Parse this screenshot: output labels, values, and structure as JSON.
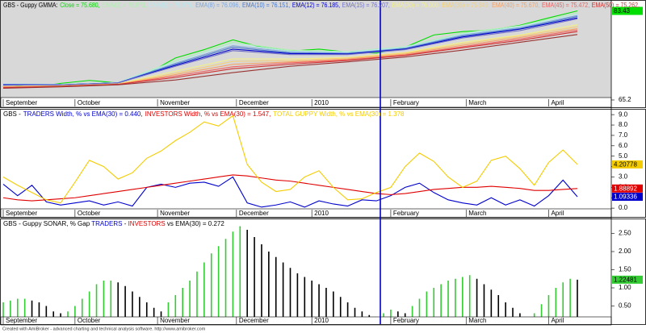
{
  "chart_data": [
    {
      "type": "line",
      "title": "GBS - Guppy GMMA:",
      "xlim": [
        0,
        169
      ],
      "xticks": [
        {
          "value": 0,
          "label": "September"
        },
        {
          "value": 20,
          "label": "October"
        },
        {
          "value": 43,
          "label": "November"
        },
        {
          "value": 65,
          "label": "December"
        },
        {
          "value": 86,
          "label": "2010"
        },
        {
          "value": 108,
          "label": "February"
        },
        {
          "value": 129,
          "label": "March"
        },
        {
          "value": 152,
          "label": "April"
        }
      ],
      "ylim": [
        65.2,
        85.0
      ],
      "yticks": [
        65.2
      ],
      "series": [
        {
          "label": "Close = 75.680,",
          "color": "#00dd00",
          "last_value_box": true,
          "x": [
            0,
            8,
            16,
            24,
            32,
            40,
            48,
            56,
            64,
            72,
            80,
            88,
            96,
            104,
            112,
            120,
            128,
            136,
            144,
            152,
            160
          ],
          "values": [
            68.5,
            67.8,
            68.6,
            69.2,
            68.7,
            70.5,
            73.8,
            75.5,
            77.5,
            76.0,
            75.2,
            75.6,
            75.0,
            74.8,
            76.0,
            78.5,
            79.2,
            79.5,
            80.5,
            82.0,
            83.43
          ]
        },
        {
          "label": "EMA(3) = 75.873,",
          "color": "#b0f0b0",
          "x": [
            0,
            16,
            32,
            48,
            64,
            80,
            96,
            112,
            128,
            144,
            160
          ],
          "values": [
            68.5,
            68.4,
            68.8,
            73.2,
            77.0,
            75.4,
            75.1,
            76.1,
            78.9,
            80.4,
            83.0
          ]
        },
        {
          "label": "EMA(5) = 75.975,",
          "color": "#b8e8f0",
          "x": [
            0,
            16,
            32,
            48,
            64,
            80,
            96,
            112,
            128,
            144,
            160
          ],
          "values": [
            68.5,
            68.4,
            68.8,
            73.0,
            76.7,
            75.2,
            75.0,
            76.0,
            78.7,
            80.2,
            82.8
          ]
        },
        {
          "label": "EMA(8) = 76.096,",
          "color": "#7fa6d8",
          "x": [
            0,
            16,
            32,
            48,
            64,
            80,
            96,
            112,
            128,
            144,
            160
          ],
          "values": [
            68.4,
            68.3,
            68.7,
            72.7,
            76.3,
            75.0,
            74.8,
            75.8,
            78.5,
            80.0,
            82.5
          ]
        },
        {
          "label": "EMA(10) = 76.151,",
          "color": "#4a78cc",
          "x": [
            0,
            16,
            32,
            48,
            64,
            80,
            96,
            112,
            128,
            144,
            160
          ],
          "values": [
            68.3,
            68.3,
            68.7,
            72.5,
            76.0,
            74.8,
            74.7,
            75.7,
            78.3,
            79.8,
            82.3
          ]
        },
        {
          "label": "EMA(12) = 76.185,",
          "color": "#0000cc",
          "x": [
            0,
            16,
            32,
            48,
            64,
            80,
            96,
            112,
            128,
            144,
            160
          ],
          "values": [
            68.3,
            68.3,
            68.7,
            72.3,
            75.6,
            74.7,
            74.6,
            75.6,
            78.1,
            79.7,
            82.0
          ]
        },
        {
          "label": "EMA(15) = 76.207,",
          "color": "#7070c8",
          "x": [
            0,
            16,
            32,
            48,
            64,
            80,
            96,
            112,
            128,
            144,
            160
          ],
          "values": [
            68.2,
            68.3,
            68.7,
            72.1,
            75.3,
            74.5,
            74.5,
            75.5,
            77.9,
            79.4,
            81.8
          ]
        },
        {
          "label": "EMA(30) = 76.000,",
          "color": "#f4f088",
          "x": [
            0,
            16,
            32,
            48,
            64,
            80,
            96,
            112,
            128,
            144,
            160
          ],
          "values": [
            68.0,
            68.1,
            68.5,
            71.1,
            73.6,
            73.6,
            73.9,
            74.9,
            77.0,
            78.5,
            80.6
          ]
        },
        {
          "label": "EMA(35) = 75.849,",
          "color": "#f8d070",
          "x": [
            0,
            16,
            32,
            48,
            64,
            80,
            96,
            112,
            128,
            144,
            160
          ],
          "values": [
            67.9,
            68.1,
            68.5,
            70.7,
            73.1,
            73.3,
            73.8,
            74.8,
            76.7,
            78.3,
            80.2
          ]
        },
        {
          "label": "EMA(40) = 75.670,",
          "color": "#f8a060",
          "x": [
            0,
            16,
            32,
            48,
            64,
            80,
            96,
            112,
            128,
            144,
            160
          ],
          "values": [
            67.9,
            68.0,
            68.4,
            70.4,
            72.5,
            73.0,
            73.6,
            74.6,
            76.4,
            78.0,
            79.8
          ]
        },
        {
          "label": "EMA(45) = 75.472,",
          "color": "#f06060",
          "x": [
            0,
            16,
            32,
            48,
            64,
            80,
            96,
            112,
            128,
            144,
            160
          ],
          "values": [
            67.8,
            68.0,
            68.4,
            70.1,
            72.0,
            72.8,
            73.4,
            74.4,
            76.1,
            77.7,
            79.5
          ]
        },
        {
          "label": "EMA(50) = 75.262,",
          "color": "#d03030",
          "x": [
            0,
            16,
            32,
            48,
            64,
            80,
            96,
            112,
            128,
            144,
            160
          ],
          "values": [
            67.7,
            68.0,
            68.4,
            69.8,
            71.6,
            72.5,
            73.3,
            74.3,
            75.9,
            77.4,
            79.2
          ]
        },
        {
          "color": "#993333",
          "x": [
            0,
            16,
            32,
            48,
            64,
            80,
            96,
            112,
            128,
            144,
            160
          ],
          "values": [
            67.6,
            67.9,
            68.3,
            69.3,
            70.8,
            72.1,
            73.0,
            74.0,
            75.4,
            77.0,
            78.6
          ]
        }
      ]
    },
    {
      "type": "line",
      "title": "GBS -",
      "xlim": [
        0,
        169
      ],
      "xticks": [
        {
          "value": 0,
          "label": "September"
        },
        {
          "value": 20,
          "label": "October"
        },
        {
          "value": 43,
          "label": "November"
        },
        {
          "value": 65,
          "label": "December"
        },
        {
          "value": 86,
          "label": "2010"
        },
        {
          "value": 108,
          "label": "February"
        },
        {
          "value": 129,
          "label": "March"
        },
        {
          "value": 152,
          "label": "April"
        }
      ],
      "ylim": [
        -0.3,
        9.4
      ],
      "yticks": [
        {
          "value": 0,
          "label": "0.0"
        },
        {
          "value": 1,
          "label": "1.0"
        },
        {
          "value": 2,
          "label": "2.0"
        },
        {
          "value": 3,
          "label": "3.0"
        },
        {
          "value": 4,
          "label": "4.0"
        },
        {
          "value": 5,
          "label": "5.0"
        },
        {
          "value": 6,
          "label": "6.0"
        },
        {
          "value": 7,
          "label": "7.0"
        },
        {
          "value": 8,
          "label": "8.0"
        },
        {
          "value": 9,
          "label": "9.0"
        }
      ],
      "x": [
        0,
        4,
        8,
        12,
        16,
        20,
        24,
        28,
        32,
        36,
        40,
        44,
        48,
        52,
        56,
        60,
        64,
        68,
        72,
        76,
        80,
        84,
        88,
        92,
        96,
        100,
        104,
        108,
        112,
        116,
        120,
        124,
        128,
        132,
        136,
        140,
        144,
        148,
        152,
        156,
        160
      ],
      "series": [
        {
          "label": "TRADERS Width, % vs EMA(30) = 0.440,",
          "color": "#0000cc",
          "last_value_box": true,
          "values": [
            2.3,
            1.2,
            2.2,
            0.6,
            0.3,
            0.5,
            0.7,
            0.3,
            0.6,
            0.2,
            2.0,
            2.3,
            2.0,
            2.4,
            2.5,
            2.1,
            3.0,
            0.5,
            0.1,
            0.3,
            0.6,
            0.1,
            0.7,
            0.4,
            0.2,
            0.8,
            0.7,
            1.2,
            2.0,
            2.4,
            1.5,
            0.8,
            0.5,
            0.3,
            1.0,
            0.3,
            0.8,
            0.2,
            1.2,
            2.7,
            1.09336
          ]
        },
        {
          "label": "INVESTORS Width, % vs EMA(30) = 1.547,",
          "color": "#e00000",
          "last_value_box": true,
          "values": [
            1.0,
            0.8,
            0.7,
            0.8,
            0.9,
            1.0,
            1.2,
            1.4,
            1.6,
            1.8,
            2.0,
            2.2,
            2.4,
            2.6,
            2.8,
            3.0,
            3.2,
            3.1,
            2.9,
            2.7,
            2.6,
            2.4,
            2.2,
            2.0,
            1.8,
            1.6,
            1.4,
            1.3,
            1.4,
            1.6,
            1.8,
            1.9,
            2.0,
            2.0,
            2.1,
            2.0,
            1.9,
            1.7,
            1.7,
            1.8,
            1.88892
          ]
        },
        {
          "label": "TOTAL GUPPY Width, % vs EMA(30) = 1.378",
          "color": "#f4cc00",
          "last_value_box": true,
          "values": [
            3.0,
            2.2,
            1.5,
            0.8,
            0.5,
            2.5,
            4.6,
            4.0,
            2.8,
            3.4,
            4.8,
            5.5,
            6.5,
            7.3,
            8.3,
            7.9,
            8.9,
            4.2,
            2.5,
            1.6,
            1.8,
            3.0,
            3.6,
            2.0,
            0.8,
            0.9,
            1.5,
            2.0,
            4.0,
            5.3,
            4.5,
            3.0,
            2.0,
            2.6,
            4.6,
            5.0,
            3.8,
            2.2,
            4.4,
            5.6,
            4.20778
          ]
        }
      ]
    },
    {
      "type": "bar",
      "title_parts": [
        {
          "text": "GBS - Guppy SONAR, % Gap ",
          "color": "#000000"
        },
        {
          "text": "TRADERS",
          "color": "#0000cc"
        },
        {
          "text": " - ",
          "color": "#000000"
        },
        {
          "text": "INVESTORS",
          "color": "#e00000"
        },
        {
          "text": " vs EMA(30) = 0.272",
          "color": "#000000"
        }
      ],
      "xlim": [
        0,
        169
      ],
      "xticks": [
        {
          "value": 0,
          "label": "September"
        },
        {
          "value": 20,
          "label": "October"
        },
        {
          "value": 43,
          "label": "November"
        },
        {
          "value": 65,
          "label": "December"
        },
        {
          "value": 86,
          "label": "2010"
        },
        {
          "value": 108,
          "label": "February"
        },
        {
          "value": 129,
          "label": "March"
        },
        {
          "value": 152,
          "label": "April"
        }
      ],
      "ylim": [
        0,
        2.8
      ],
      "yticks": [
        {
          "value": 0.5,
          "label": "0.50"
        },
        {
          "value": 1,
          "label": "1.00"
        },
        {
          "value": 1.5,
          "label": "1.50"
        },
        {
          "value": 2,
          "label": "2.00"
        },
        {
          "value": 2.5,
          "label": "2.50"
        }
      ],
      "up_color": "#33cc33",
      "down_color": "#000000",
      "last_value_box": true,
      "x": [
        0,
        2,
        4,
        6,
        8,
        10,
        12,
        14,
        16,
        18,
        20,
        22,
        24,
        26,
        28,
        30,
        32,
        34,
        36,
        38,
        40,
        42,
        44,
        46,
        48,
        50,
        52,
        54,
        56,
        58,
        60,
        62,
        64,
        66,
        68,
        70,
        72,
        74,
        76,
        78,
        80,
        82,
        84,
        86,
        88,
        90,
        92,
        94,
        96,
        98,
        100,
        102,
        104,
        106,
        108,
        110,
        112,
        114,
        116,
        118,
        120,
        122,
        124,
        126,
        128,
        130,
        132,
        134,
        136,
        138,
        140,
        142,
        144,
        146,
        148,
        150,
        152,
        154,
        156,
        158,
        160
      ],
      "values": [
        0.6,
        0.65,
        0.7,
        0.7,
        0.65,
        0.6,
        0.5,
        0.35,
        0.3,
        0.35,
        0.5,
        0.7,
        0.9,
        1.1,
        1.2,
        1.2,
        1.15,
        1.05,
        0.9,
        0.75,
        0.6,
        0.45,
        0.35,
        0.6,
        0.8,
        1.0,
        1.2,
        1.45,
        1.7,
        1.95,
        2.15,
        2.35,
        2.55,
        2.7,
        2.6,
        2.4,
        2.2,
        2.0,
        1.85,
        1.7,
        1.55,
        1.4,
        1.3,
        1.2,
        1.1,
        1.0,
        0.9,
        0.75,
        0.6,
        0.45,
        0.35,
        0.25,
        0.15,
        0.3,
        0.4,
        0.35,
        0.3,
        0.5,
        0.7,
        0.9,
        1.0,
        1.1,
        1.2,
        1.25,
        1.3,
        1.35,
        1.25,
        1.1,
        0.95,
        0.8,
        0.6,
        0.45,
        0.3,
        0.2,
        0.3,
        0.55,
        0.8,
        1.0,
        1.15,
        1.25,
        1.22481
      ]
    }
  ],
  "footer": "Created with AmiBroker - advanced charting and technical analysis software. http://www.amibroker.com"
}
